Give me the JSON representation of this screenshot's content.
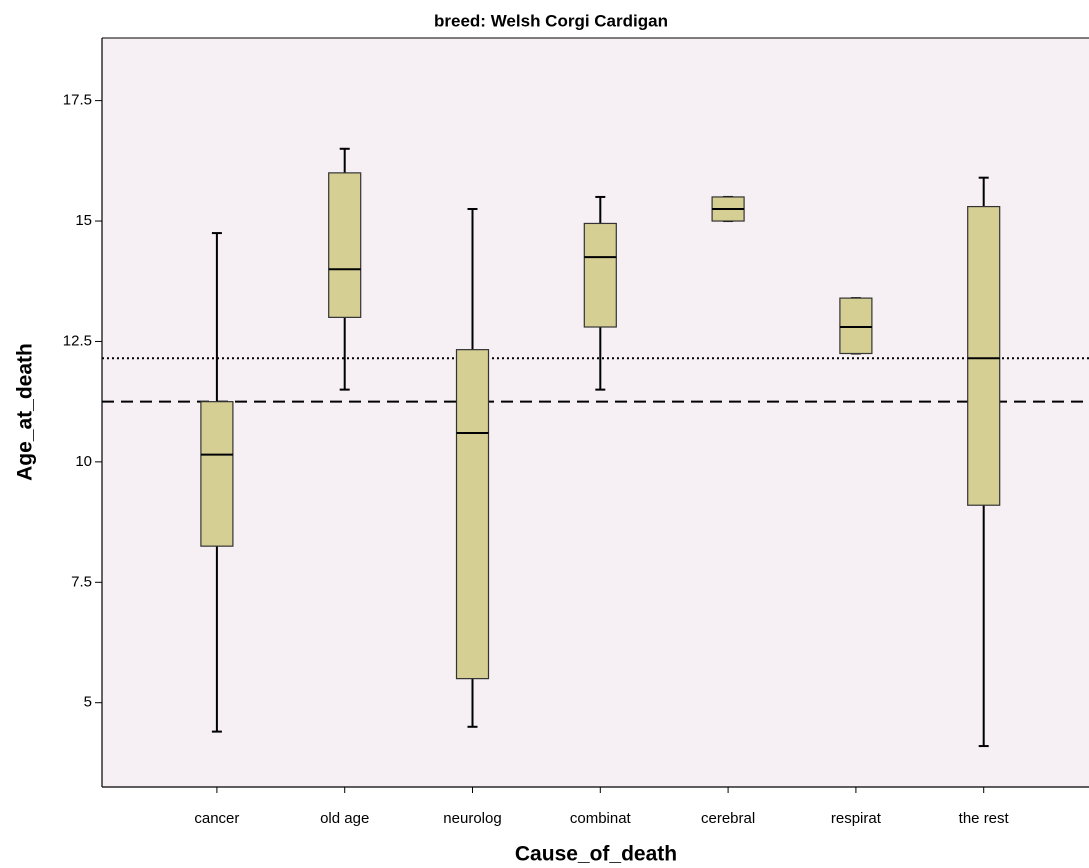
{
  "chart_data": {
    "type": "box",
    "title": "breed: Welsh Corgi Cardigan",
    "x_label": "Cause_of_death",
    "y_label": "Age_at_death",
    "categories": [
      "cancer",
      "old age",
      "neurolog",
      "combinat",
      "cerebral",
      "respirat",
      "the rest"
    ],
    "min": [
      4.4,
      11.5,
      4.5,
      11.5,
      15,
      12.25,
      4.1
    ],
    "q1": [
      8.25,
      13,
      5.5,
      12.8,
      15,
      12.25,
      9.1
    ],
    "median": [
      10.15,
      14,
      10.6,
      14.25,
      15.25,
      12.8,
      12.15
    ],
    "q3": [
      11.25,
      16,
      12.33,
      14.95,
      15.5,
      13.4,
      15.3
    ],
    "max": [
      14.75,
      16.5,
      15.25,
      15.5,
      15.5,
      13.4,
      15.9
    ],
    "color": "#d6cf94",
    "ylim": [
      3.25,
      18.8
    ],
    "yticks": [
      5,
      7.5,
      10,
      12.5,
      15,
      17.5
    ],
    "reference_lines": [
      {
        "value": 12.15,
        "style": "dotted"
      },
      {
        "value": 11.25,
        "style": "dashed"
      }
    ],
    "grid": false
  }
}
